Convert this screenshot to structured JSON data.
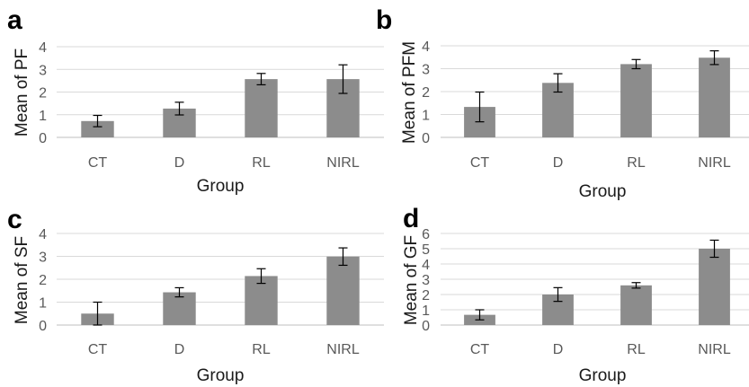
{
  "colors": {
    "bar": "#8c8c8c",
    "grid": "#d9d9d9",
    "axis": "#bfbfbf",
    "error_bar": "#000000"
  },
  "chart_data": [
    {
      "panel": "a",
      "type": "bar",
      "categories": [
        "CT",
        "D",
        "RL",
        "NIRL"
      ],
      "values": [
        0.72,
        1.27,
        2.57,
        2.57
      ],
      "errors": [
        0.25,
        0.28,
        0.25,
        0.63
      ],
      "xlabel": "Group",
      "ylabel": "Mean of PF",
      "ylim": [
        0,
        4
      ],
      "yticks": [
        "0",
        "1",
        "2",
        "3",
        "4"
      ],
      "grid": true
    },
    {
      "panel": "b",
      "type": "bar",
      "categories": [
        "CT",
        "D",
        "RL",
        "NIRL"
      ],
      "values": [
        1.33,
        2.38,
        3.2,
        3.48
      ],
      "errors": [
        0.65,
        0.4,
        0.2,
        0.3
      ],
      "xlabel": "Group",
      "ylabel": "Mean of PFM",
      "ylim": [
        0,
        4
      ],
      "yticks": [
        "0",
        "1",
        "2",
        "3",
        "4"
      ],
      "grid": true
    },
    {
      "panel": "c",
      "type": "bar",
      "categories": [
        "CT",
        "D",
        "RL",
        "NIRL"
      ],
      "values": [
        0.5,
        1.43,
        2.14,
        2.99
      ],
      "errors": [
        0.5,
        0.2,
        0.32,
        0.38
      ],
      "xlabel": "Group",
      "ylabel": "Mean of SF",
      "ylim": [
        0,
        4
      ],
      "yticks": [
        "0",
        "1",
        "2",
        "3",
        "4"
      ],
      "grid": true
    },
    {
      "panel": "d",
      "type": "bar",
      "categories": [
        "CT",
        "D",
        "RL",
        "NIRL"
      ],
      "values": [
        0.67,
        2.0,
        2.6,
        5.0
      ],
      "errors": [
        0.33,
        0.45,
        0.18,
        0.56
      ],
      "xlabel": "Group",
      "ylabel": "Mean of GF",
      "ylim": [
        0,
        6
      ],
      "yticks": [
        "0",
        "1",
        "2",
        "3",
        "4",
        "5",
        "6"
      ],
      "grid": true
    }
  ]
}
